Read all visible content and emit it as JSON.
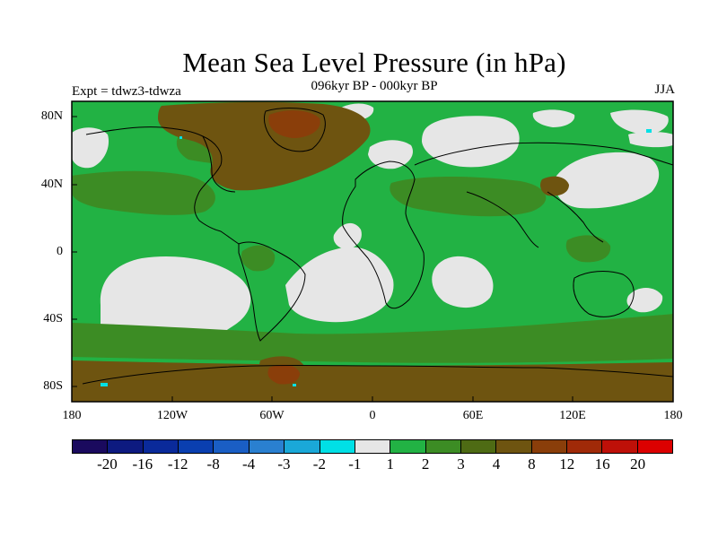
{
  "title": "Mean Sea Level Pressure (in hPa)",
  "subtitle": "096kyr BP - 000kyr BP",
  "experiment": "Expt = tdwz3-tdwza",
  "season": "JJA",
  "y_axis": {
    "labels": [
      "80N",
      "40N",
      "0",
      "40S",
      "80S"
    ]
  },
  "x_axis": {
    "labels": [
      "180",
      "120W",
      "60W",
      "0",
      "60E",
      "120E",
      "180"
    ]
  },
  "colorbar": {
    "colors": [
      "#1a0a5e",
      "#0d1a80",
      "#0a2a9a",
      "#0a3fb0",
      "#1a5ec4",
      "#2a80d0",
      "#1aa8d8",
      "#00e0e6",
      "#e6e6e6",
      "#22b244",
      "#3c8c24",
      "#4e6b14",
      "#6e5410",
      "#8a3e0a",
      "#a02a08",
      "#be1008",
      "#dc0000"
    ],
    "labels": [
      "-20",
      "-16",
      "-12",
      "-8",
      "-4",
      "-3",
      "-2",
      "-1",
      "1",
      "2",
      "3",
      "4",
      "8",
      "12",
      "16",
      "20"
    ]
  },
  "palette": {
    "ocean_background": "#22b244",
    "near_zero": "#e6e6e6",
    "moderate_positive": "#3c8c24",
    "high_positive": "#6e5410",
    "strong_positive": "#8a3e0a",
    "negative_small": "#00e0e6",
    "coast": "#000000"
  }
}
